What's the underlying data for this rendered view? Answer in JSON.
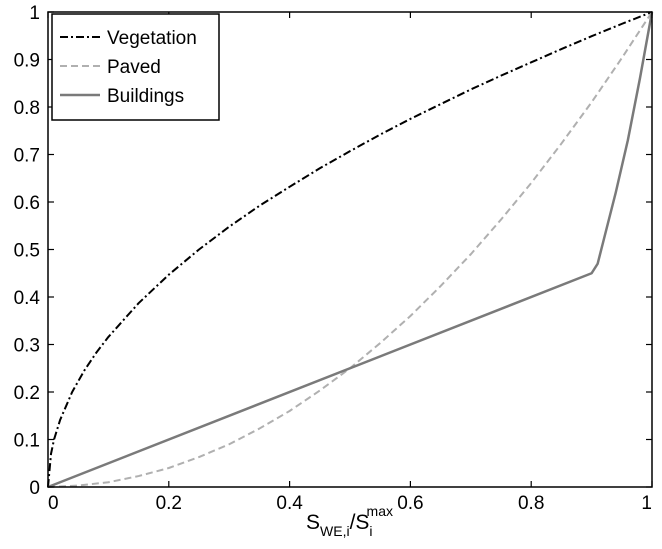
{
  "chart_data": {
    "type": "line",
    "xlim": [
      0,
      1
    ],
    "ylim": [
      0,
      1
    ],
    "grid": false,
    "legend_position": "top-left",
    "title": "",
    "xlabel": {
      "S": "S",
      "sub1": "WE,i",
      "slash": "/S",
      "sub2": "i",
      "sup2": "max"
    },
    "ylabel": "",
    "xticks": [
      "0",
      "0.2",
      "0.4",
      "0.6",
      "0.8",
      "1"
    ],
    "yticks": [
      "0",
      "0.1",
      "0.2",
      "0.3",
      "0.4",
      "0.5",
      "0.6",
      "0.7",
      "0.8",
      "0.9",
      "1"
    ],
    "series": [
      {
        "name": "Vegetation",
        "color": "#000000",
        "style": "dashdot",
        "x": [
          0,
          0.005,
          0.01,
          0.02,
          0.04,
          0.06,
          0.08,
          0.1,
          0.15,
          0.2,
          0.25,
          0.3,
          0.35,
          0.4,
          0.45,
          0.5,
          0.55,
          0.6,
          0.65,
          0.7,
          0.75,
          0.8,
          0.85,
          0.9,
          0.95,
          1
        ],
        "y": [
          0,
          0.07,
          0.1,
          0.141,
          0.2,
          0.245,
          0.283,
          0.316,
          0.387,
          0.447,
          0.5,
          0.548,
          0.592,
          0.632,
          0.671,
          0.707,
          0.742,
          0.775,
          0.806,
          0.837,
          0.866,
          0.894,
          0.922,
          0.949,
          0.975,
          1
        ]
      },
      {
        "name": "Paved",
        "color": "#b0b0b0",
        "style": "dashed",
        "x": [
          0,
          0.05,
          0.1,
          0.15,
          0.2,
          0.25,
          0.3,
          0.35,
          0.4,
          0.45,
          0.5,
          0.55,
          0.6,
          0.65,
          0.7,
          0.75,
          0.8,
          0.85,
          0.9,
          0.95,
          1
        ],
        "y": [
          0,
          0.003,
          0.01,
          0.023,
          0.04,
          0.063,
          0.09,
          0.123,
          0.16,
          0.203,
          0.25,
          0.303,
          0.36,
          0.423,
          0.49,
          0.563,
          0.64,
          0.723,
          0.81,
          0.903,
          1
        ]
      },
      {
        "name": "Buildings",
        "color": "#7a7a7a",
        "style": "solid",
        "x": [
          0,
          0.9,
          0.91,
          0.92,
          0.94,
          0.96,
          0.98,
          1
        ],
        "y": [
          0,
          0.45,
          0.47,
          0.52,
          0.62,
          0.73,
          0.86,
          1
        ]
      }
    ]
  }
}
